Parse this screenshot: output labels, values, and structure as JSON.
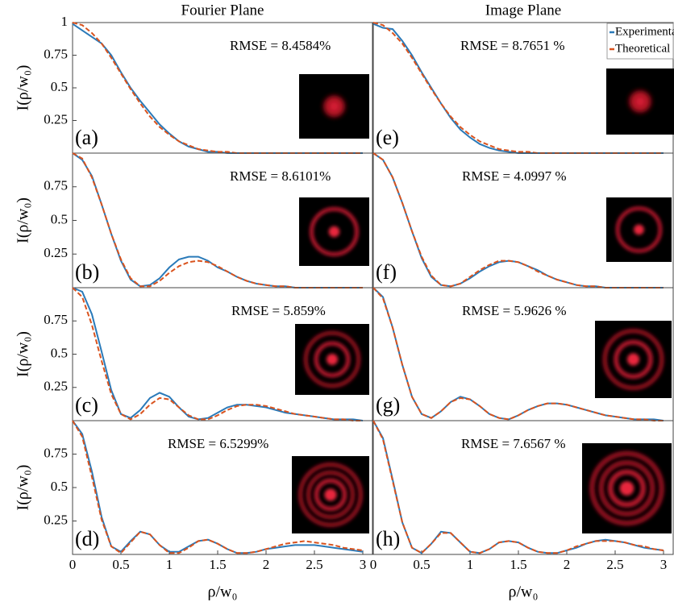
{
  "chart_data": [
    {
      "type": "line",
      "title": "Fourier Plane",
      "ylabel": "I(ρ/w₀)",
      "panel_label": "(a)",
      "annotation": "RMSE = 8.4584%",
      "x": [
        0,
        0.1,
        0.2,
        0.3,
        0.4,
        0.5,
        0.6,
        0.7,
        0.8,
        0.9,
        1,
        1.1,
        1.2,
        1.3,
        1.4,
        1.5,
        1.6,
        1.7,
        1.8,
        1.9,
        2,
        2.1,
        2.2,
        2.3,
        2.4,
        2.5,
        2.6,
        2.7,
        2.8,
        2.9,
        3
      ],
      "series": [
        {
          "color": "#2a7ab9",
          "dash": false,
          "values": [
            0.99,
            0.94,
            0.89,
            0.84,
            0.75,
            0.62,
            0.5,
            0.4,
            0.31,
            0.22,
            0.15,
            0.09,
            0.05,
            0.03,
            0.01,
            0.01,
            0,
            0,
            0,
            0,
            0,
            0,
            0,
            0,
            0,
            0,
            0,
            0,
            0,
            0,
            0
          ]
        },
        {
          "color": "#d9531e",
          "dash": true,
          "values": [
            1,
            0.98,
            0.92,
            0.84,
            0.73,
            0.61,
            0.49,
            0.38,
            0.28,
            0.2,
            0.14,
            0.09,
            0.06,
            0.03,
            0.02,
            0.01,
            0.01,
            0,
            0,
            0,
            0,
            0,
            0,
            0,
            0,
            0,
            0,
            0,
            0,
            0,
            0
          ]
        }
      ],
      "xlim": [
        0,
        3.1
      ],
      "ylim": [
        0,
        1
      ],
      "yticks": [
        0.25,
        0.5,
        0.75,
        1
      ]
    },
    {
      "type": "line",
      "ylabel": "I(ρ/w₀)",
      "panel_label": "(b)",
      "annotation": "RMSE = 8.6101%",
      "x": [
        0,
        0.1,
        0.2,
        0.3,
        0.4,
        0.5,
        0.6,
        0.7,
        0.8,
        0.9,
        1,
        1.1,
        1.2,
        1.3,
        1.4,
        1.5,
        1.6,
        1.7,
        1.8,
        1.9,
        2,
        2.1,
        2.2,
        2.3,
        2.4,
        2.5,
        2.6,
        2.7,
        2.8,
        2.9,
        3
      ],
      "series": [
        {
          "color": "#2a7ab9",
          "dash": false,
          "values": [
            1,
            0.95,
            0.83,
            0.62,
            0.4,
            0.2,
            0.06,
            0.01,
            0.02,
            0.07,
            0.15,
            0.21,
            0.23,
            0.23,
            0.2,
            0.15,
            0.12,
            0.08,
            0.05,
            0.03,
            0.02,
            0.01,
            0.01,
            0,
            0,
            0,
            0,
            0,
            0,
            0,
            0
          ]
        },
        {
          "color": "#d9531e",
          "dash": true,
          "values": [
            1,
            0.96,
            0.82,
            0.62,
            0.4,
            0.21,
            0.07,
            0.01,
            0.01,
            0.05,
            0.11,
            0.16,
            0.19,
            0.2,
            0.19,
            0.16,
            0.12,
            0.08,
            0.05,
            0.03,
            0.02,
            0.01,
            0.01,
            0,
            0,
            0,
            0,
            0,
            0,
            0,
            0
          ]
        }
      ],
      "xlim": [
        0,
        3.1
      ],
      "ylim": [
        0,
        1
      ],
      "yticks": [
        0.25,
        0.5,
        0.75
      ]
    },
    {
      "type": "line",
      "ylabel": "I(ρ/w₀)",
      "panel_label": "(c)",
      "annotation": "RMSE = 5.859%",
      "x": [
        0,
        0.1,
        0.2,
        0.3,
        0.4,
        0.5,
        0.6,
        0.7,
        0.8,
        0.9,
        1,
        1.1,
        1.2,
        1.3,
        1.4,
        1.5,
        1.6,
        1.7,
        1.8,
        1.9,
        2,
        2.1,
        2.2,
        2.3,
        2.4,
        2.5,
        2.6,
        2.7,
        2.8,
        2.9,
        3
      ],
      "series": [
        {
          "color": "#2a7ab9",
          "dash": false,
          "values": [
            1,
            0.97,
            0.8,
            0.52,
            0.23,
            0.05,
            0.02,
            0.08,
            0.17,
            0.21,
            0.18,
            0.1,
            0.03,
            0.01,
            0.02,
            0.06,
            0.1,
            0.12,
            0.12,
            0.11,
            0.1,
            0.08,
            0.06,
            0.05,
            0.04,
            0.03,
            0.02,
            0.01,
            0.01,
            0.01,
            0
          ]
        },
        {
          "color": "#d9531e",
          "dash": true,
          "values": [
            1,
            0.93,
            0.72,
            0.45,
            0.2,
            0.05,
            0.01,
            0.05,
            0.12,
            0.17,
            0.16,
            0.1,
            0.04,
            0.01,
            0.01,
            0.04,
            0.08,
            0.11,
            0.12,
            0.12,
            0.11,
            0.09,
            0.07,
            0.05,
            0.04,
            0.03,
            0.02,
            0.01,
            0.01,
            0,
            0
          ]
        }
      ],
      "xlim": [
        0,
        3.1
      ],
      "ylim": [
        0,
        1
      ],
      "yticks": [
        0.25,
        0.5,
        0.75
      ]
    },
    {
      "type": "line",
      "ylabel": "I(ρ/w₀)",
      "xlabel": "ρ/w₀",
      "panel_label": "(d)",
      "annotation": "RMSE = 6.5299%",
      "x": [
        0,
        0.1,
        0.2,
        0.3,
        0.4,
        0.5,
        0.6,
        0.7,
        0.8,
        0.9,
        1,
        1.1,
        1.2,
        1.3,
        1.4,
        1.5,
        1.6,
        1.7,
        1.8,
        1.9,
        2,
        2.1,
        2.2,
        2.3,
        2.4,
        2.5,
        2.6,
        2.7,
        2.8,
        2.9,
        3
      ],
      "series": [
        {
          "color": "#2a7ab9",
          "dash": false,
          "values": [
            1,
            0.9,
            0.62,
            0.28,
            0.06,
            0.02,
            0.1,
            0.17,
            0.15,
            0.07,
            0.02,
            0.02,
            0.06,
            0.1,
            0.11,
            0.08,
            0.04,
            0.01,
            0.01,
            0.02,
            0.04,
            0.05,
            0.06,
            0.07,
            0.07,
            0.07,
            0.06,
            0.05,
            0.04,
            0.03,
            0.02
          ]
        },
        {
          "color": "#d9531e",
          "dash": true,
          "values": [
            1,
            0.88,
            0.58,
            0.26,
            0.06,
            0.01,
            0.09,
            0.17,
            0.15,
            0.07,
            0.01,
            0.01,
            0.05,
            0.1,
            0.11,
            0.08,
            0.04,
            0.01,
            0.01,
            0.02,
            0.04,
            0.06,
            0.08,
            0.09,
            0.1,
            0.09,
            0.08,
            0.07,
            0.05,
            0.04,
            0.03
          ]
        }
      ],
      "xlim": [
        0,
        3.1
      ],
      "ylim": [
        0,
        1
      ],
      "yticks": [
        0.25,
        0.5,
        0.75
      ],
      "xticks": [
        0,
        0.5,
        1,
        1.5,
        2,
        2.5,
        3
      ]
    },
    {
      "type": "line",
      "title": "Image Plane",
      "panel_label": "(e)",
      "annotation": "RMSE = 8.7651 %",
      "legend": "upper right",
      "x": [
        0,
        0.1,
        0.2,
        0.3,
        0.4,
        0.5,
        0.6,
        0.7,
        0.8,
        0.9,
        1,
        1.1,
        1.2,
        1.3,
        1.4,
        1.5,
        1.6,
        1.7,
        1.8,
        1.9,
        2,
        2.1,
        2.2,
        2.3,
        2.4,
        2.5,
        2.6,
        2.7,
        2.8,
        2.9,
        3
      ],
      "series": [
        {
          "name": "Experimental",
          "color": "#2a7ab9",
          "dash": false,
          "values": [
            0.99,
            0.96,
            0.95,
            0.86,
            0.75,
            0.62,
            0.5,
            0.38,
            0.27,
            0.18,
            0.12,
            0.07,
            0.04,
            0.02,
            0.01,
            0,
            0,
            0,
            0,
            0,
            0,
            0,
            0,
            0,
            0,
            0,
            0,
            0,
            0,
            0,
            0
          ]
        },
        {
          "name": "Theoretical",
          "color": "#d9531e",
          "dash": true,
          "values": [
            1,
            0.98,
            0.92,
            0.84,
            0.73,
            0.61,
            0.49,
            0.38,
            0.28,
            0.2,
            0.14,
            0.09,
            0.06,
            0.03,
            0.02,
            0.01,
            0.01,
            0,
            0,
            0,
            0,
            0,
            0,
            0,
            0,
            0,
            0,
            0,
            0,
            0,
            0
          ]
        }
      ],
      "xlim": [
        0,
        3.1
      ],
      "ylim": [
        0,
        1
      ]
    },
    {
      "type": "line",
      "panel_label": "(f)",
      "annotation": "RMSE = 4.0997 %",
      "x": [
        0,
        0.1,
        0.2,
        0.3,
        0.4,
        0.5,
        0.6,
        0.7,
        0.8,
        0.9,
        1,
        1.1,
        1.2,
        1.3,
        1.4,
        1.5,
        1.6,
        1.7,
        1.8,
        1.9,
        2,
        2.1,
        2.2,
        2.3,
        2.4,
        2.5,
        2.6,
        2.7,
        2.8,
        2.9,
        3
      ],
      "series": [
        {
          "color": "#2a7ab9",
          "dash": false,
          "values": [
            1,
            0.95,
            0.82,
            0.63,
            0.42,
            0.22,
            0.08,
            0.02,
            0.01,
            0.03,
            0.07,
            0.12,
            0.16,
            0.19,
            0.2,
            0.19,
            0.16,
            0.13,
            0.09,
            0.06,
            0.04,
            0.02,
            0.01,
            0.01,
            0,
            0,
            0,
            0,
            0,
            0,
            0
          ]
        },
        {
          "color": "#d9531e",
          "dash": true,
          "values": [
            1,
            0.95,
            0.82,
            0.63,
            0.42,
            0.23,
            0.09,
            0.02,
            0.01,
            0.03,
            0.08,
            0.13,
            0.17,
            0.2,
            0.2,
            0.19,
            0.16,
            0.12,
            0.09,
            0.06,
            0.04,
            0.02,
            0.01,
            0.01,
            0,
            0,
            0,
            0,
            0,
            0,
            0
          ]
        }
      ],
      "xlim": [
        0,
        3.1
      ],
      "ylim": [
        0,
        1
      ]
    },
    {
      "type": "line",
      "panel_label": "(g)",
      "annotation": "RMSE = 5.9626 %",
      "x": [
        0,
        0.1,
        0.2,
        0.3,
        0.4,
        0.5,
        0.6,
        0.7,
        0.8,
        0.9,
        1,
        1.1,
        1.2,
        1.3,
        1.4,
        1.5,
        1.6,
        1.7,
        1.8,
        1.9,
        2,
        2.1,
        2.2,
        2.3,
        2.4,
        2.5,
        2.6,
        2.7,
        2.8,
        2.9,
        3
      ],
      "series": [
        {
          "color": "#2a7ab9",
          "dash": false,
          "values": [
            1,
            0.93,
            0.7,
            0.42,
            0.18,
            0.05,
            0.02,
            0.07,
            0.14,
            0.18,
            0.16,
            0.11,
            0.05,
            0.02,
            0.01,
            0.04,
            0.08,
            0.11,
            0.13,
            0.13,
            0.12,
            0.1,
            0.08,
            0.06,
            0.04,
            0.03,
            0.02,
            0.01,
            0.01,
            0.01,
            0
          ]
        },
        {
          "color": "#d9531e",
          "dash": true,
          "values": [
            1,
            0.92,
            0.7,
            0.42,
            0.18,
            0.05,
            0.02,
            0.07,
            0.14,
            0.17,
            0.16,
            0.11,
            0.05,
            0.02,
            0.01,
            0.04,
            0.08,
            0.11,
            0.13,
            0.13,
            0.12,
            0.1,
            0.08,
            0.06,
            0.04,
            0.03,
            0.02,
            0.01,
            0.01,
            0,
            0
          ]
        }
      ],
      "xlim": [
        0,
        3.1
      ],
      "ylim": [
        0,
        1
      ]
    },
    {
      "type": "line",
      "xlabel": "ρ/w₀",
      "panel_label": "(h)",
      "annotation": "RMSE = 7.6567 %",
      "x": [
        0,
        0.1,
        0.2,
        0.3,
        0.4,
        0.5,
        0.6,
        0.7,
        0.8,
        0.9,
        1,
        1.1,
        1.2,
        1.3,
        1.4,
        1.5,
        1.6,
        1.7,
        1.8,
        1.9,
        2,
        2.1,
        2.2,
        2.3,
        2.4,
        2.5,
        2.6,
        2.7,
        2.8,
        2.9,
        3
      ],
      "series": [
        {
          "color": "#2a7ab9",
          "dash": false,
          "values": [
            1,
            0.87,
            0.56,
            0.24,
            0.05,
            0.01,
            0.08,
            0.17,
            0.16,
            0.09,
            0.02,
            0.01,
            0.04,
            0.09,
            0.1,
            0.09,
            0.05,
            0.02,
            0.01,
            0.01,
            0.03,
            0.05,
            0.08,
            0.1,
            0.11,
            0.1,
            0.09,
            0.07,
            0.05,
            0.04,
            0.03
          ]
        },
        {
          "color": "#d9531e",
          "dash": true,
          "values": [
            1,
            0.86,
            0.55,
            0.24,
            0.05,
            0.01,
            0.08,
            0.16,
            0.16,
            0.09,
            0.02,
            0.01,
            0.04,
            0.09,
            0.1,
            0.09,
            0.05,
            0.02,
            0.01,
            0.01,
            0.03,
            0.06,
            0.08,
            0.1,
            0.1,
            0.1,
            0.09,
            0.07,
            0.06,
            0.04,
            0.03
          ]
        }
      ],
      "xlim": [
        0,
        3.1
      ],
      "ylim": [
        0,
        1
      ],
      "xticks": [
        0,
        0.5,
        1,
        1.5,
        2,
        2.5,
        3
      ]
    }
  ]
}
